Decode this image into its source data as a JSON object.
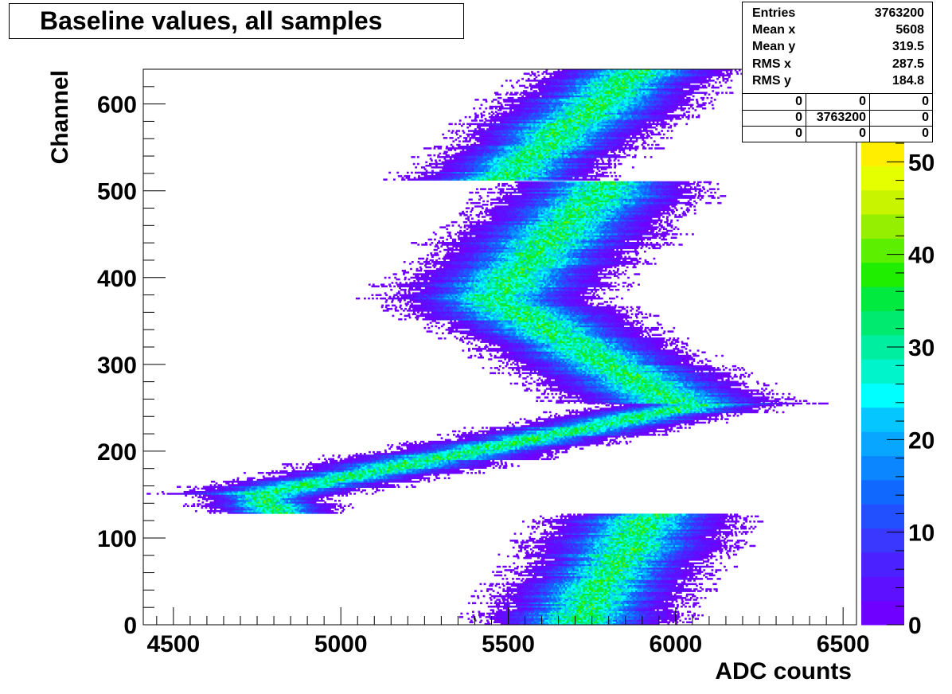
{
  "chart_data": {
    "type": "heatmap",
    "title": "Baseline values, all samples",
    "xlabel": "ADC counts",
    "ylabel": "Channel",
    "xlim": [
      4410,
      6540
    ],
    "ylim": [
      0,
      640
    ],
    "x_ticks": [
      4500,
      5000,
      5500,
      6000,
      6500
    ],
    "y_ticks": [
      0,
      100,
      200,
      300,
      400,
      500,
      600
    ],
    "z_range": [
      0,
      60
    ],
    "z_ticks": [
      0,
      10,
      20,
      30,
      40,
      50
    ],
    "z_colors": [
      "#6f00ff",
      "#5c10ff",
      "#4b22ff",
      "#3a38ff",
      "#2250ff",
      "#1068ff",
      "#0c86ff",
      "#09a6ff",
      "#05c6ff",
      "#00ffff",
      "#00f4cc",
      "#00eea0",
      "#00ea70",
      "#00ea40",
      "#20ee00",
      "#5cf000",
      "#94f000",
      "#c8f400",
      "#e6ff00",
      "#ffee00",
      "#ffc600",
      "#ffa000",
      "#ff7800"
    ],
    "ridge_segments": [
      {
        "channels": [
          0,
          127
        ],
        "center_at_start": 5700,
        "center_at_end": 5920,
        "width": 100
      },
      {
        "channels": [
          128,
          150
        ],
        "center_at_start": 4810,
        "center_at_end": 4760,
        "width": 70
      },
      {
        "channels": [
          150,
          255
        ],
        "center_at_start": 4760,
        "center_at_end": 6100,
        "width": 100
      },
      {
        "channels": [
          255,
          375
        ],
        "center_at_start": 6000,
        "center_at_end": 5450,
        "width": 110
      },
      {
        "channels": [
          375,
          510
        ],
        "center_at_start": 5450,
        "center_at_end": 5800,
        "width": 110
      },
      {
        "channels": [
          512,
          640
        ],
        "center_at_start": 5480,
        "center_at_end": 5900,
        "width": 100
      }
    ],
    "stats": {
      "entries_label": "Entries",
      "entries": "3763200",
      "mean_x_label": "Mean x",
      "mean_x": "5608",
      "mean_y_label": "Mean y",
      "mean_y": "319.5",
      "rms_x_label": "RMS x",
      "rms_x": "287.5",
      "rms_y_label": "RMS y",
      "rms_y": "184.8",
      "grid": [
        [
          "0",
          "0",
          "0"
        ],
        [
          "0",
          "3763200",
          "0"
        ],
        [
          "0",
          "0",
          "0"
        ]
      ]
    }
  }
}
